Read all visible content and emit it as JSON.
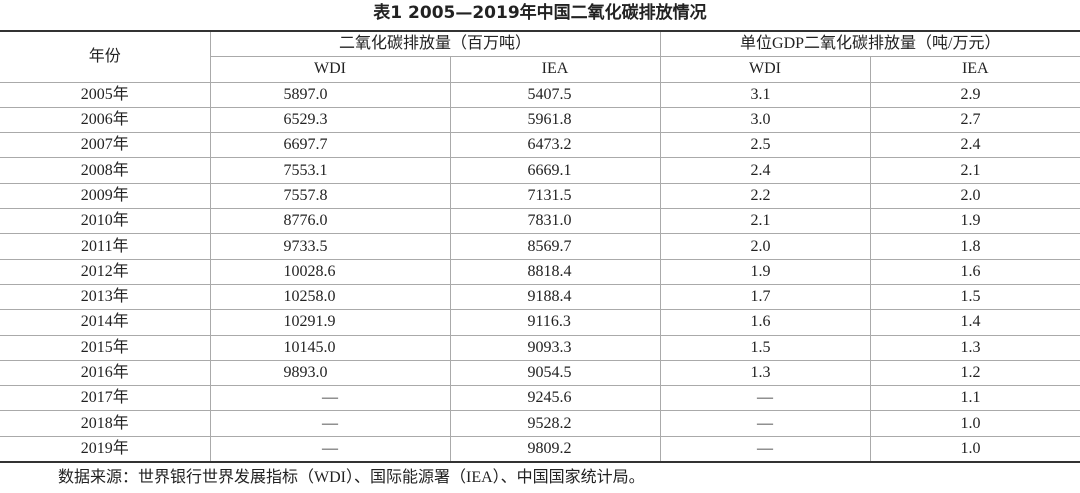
{
  "title": "表1 2005—2019年中国二氧化碳排放情况",
  "header": {
    "year": "年份",
    "groups": [
      "二氧化碳排放量（百万吨）",
      "单位GDP二氧化碳排放量（吨/万元）"
    ],
    "sub": [
      "WDI",
      "IEA",
      "WDI",
      "IEA"
    ]
  },
  "table": {
    "rows": [
      [
        "2005年",
        "5897.0",
        "5407.5",
        "3.1",
        "2.9"
      ],
      [
        "2006年",
        "6529.3",
        "5961.8",
        "3.0",
        "2.7"
      ],
      [
        "2007年",
        "6697.7",
        "6473.2",
        "2.5",
        "2.4"
      ],
      [
        "2008年",
        "7553.1",
        "6669.1",
        "2.4",
        "2.1"
      ],
      [
        "2009年",
        "7557.8",
        "7131.5",
        "2.2",
        "2.0"
      ],
      [
        "2010年",
        "8776.0",
        "7831.0",
        "2.1",
        "1.9"
      ],
      [
        "2011年",
        "9733.5",
        "8569.7",
        "2.0",
        "1.8"
      ],
      [
        "2012年",
        "10028.6",
        "8818.4",
        "1.9",
        "1.6"
      ],
      [
        "2013年",
        "10258.0",
        "9188.4",
        "1.7",
        "1.5"
      ],
      [
        "2014年",
        "10291.9",
        "9116.3",
        "1.6",
        "1.4"
      ],
      [
        "2015年",
        "10145.0",
        "9093.3",
        "1.5",
        "1.3"
      ],
      [
        "2016年",
        "9893.0",
        "9054.5",
        "1.3",
        "1.2"
      ],
      [
        "2017年",
        "—",
        "9245.6",
        "—",
        "1.1"
      ],
      [
        "2018年",
        "—",
        "9528.2",
        "—",
        "1.0"
      ],
      [
        "2019年",
        "—",
        "9809.2",
        "—",
        "1.0"
      ]
    ]
  },
  "footer": {
    "source": "数据来源：世界银行世界发展指标（WDI）、国际能源署（IEA）、中国国家统计局。"
  }
}
